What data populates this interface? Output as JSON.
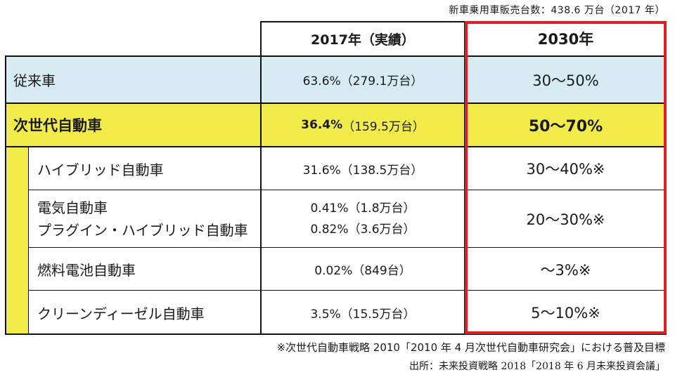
{
  "top_note": "新車乗用車販売台数：438.6 万台（2017 年）",
  "headers": {
    "col2017": "2017年（実績）",
    "col2030": "2030年"
  },
  "rows": {
    "conventional": {
      "label": "従来車",
      "v2017": "63.6%（279.1万台）",
      "v2030": "30〜50%"
    },
    "nextgen": {
      "label": "次世代自動車",
      "v2017_pct": "36.4%",
      "v2017_units": "（159.5万台）",
      "v2030": "50〜70%"
    },
    "hybrid": {
      "label": "ハイブリッド自動車",
      "v2017": "31.6%（138.5万台）",
      "v2030": "30〜40%※"
    },
    "ev_phev": {
      "label1": "電気自動車",
      "label2": "プラグイン・ハイブリッド自動車",
      "v2017_1": "0.41%（1.8万台）",
      "v2017_2": "0.82%（3.6万台）",
      "v2030": "20〜30%※"
    },
    "fcv": {
      "label": "燃料電池自動車",
      "v2017": "0.02%（849台）",
      "v2030": "〜3%※"
    },
    "diesel": {
      "label": "クリーンディーゼル自動車",
      "v2017": "3.5%（15.5万台）",
      "v2030": "5〜10%※"
    }
  },
  "footnote": "※次世代自動車戦略 2010「2010 年 4 月次世代自動車研究会」における普及目標",
  "source": "出所：未来投資戦略 2018「2018 年 6 月未来投資会議」",
  "colors": {
    "blue_row": "#d7ebf2",
    "yellow": "#f2ec4a",
    "highlight_border": "#e02020"
  }
}
